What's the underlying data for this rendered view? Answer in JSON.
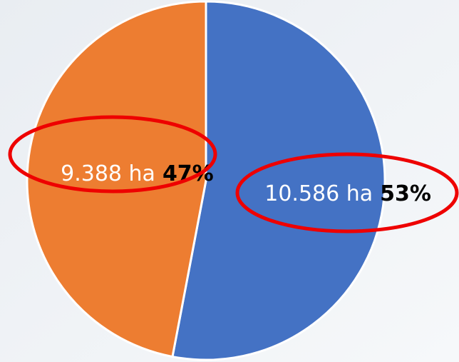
{
  "chart_data": {
    "type": "pie",
    "labels": [
      "10.586 ha",
      "9.388 ha"
    ],
    "values": [
      53,
      47
    ],
    "value_labels": [
      "53%",
      "47%"
    ],
    "colors": [
      "#4472c4",
      "#ed7d31"
    ]
  }
}
